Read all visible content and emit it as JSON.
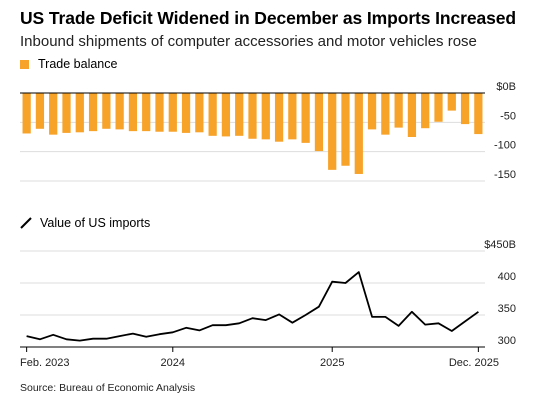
{
  "header": {
    "title": "US Trade Deficit Widened in December as Imports Increased",
    "subtitle": "Inbound shipments of computer accessories and motor vehicles rose"
  },
  "source": "Source: Bureau of Economic Analysis",
  "colors": {
    "bar": "#f7a229",
    "line": "#000000",
    "axis": "#000000",
    "grid": "#dddddd"
  },
  "chart_data": [
    {
      "type": "bar",
      "legend": "Trade balance",
      "series": [
        {
          "name": "Trade balance",
          "values": [
            -69,
            -61,
            -71,
            -68,
            -67,
            -65,
            -61,
            -62,
            -65,
            -65,
            -66,
            -66,
            -68,
            -67,
            -73,
            -74,
            -73,
            -78,
            -79,
            -83,
            -79,
            -85,
            -99,
            -131,
            -124,
            -138,
            -62,
            -71,
            -59,
            -75,
            -60,
            -49,
            -30,
            -53,
            -70
          ]
        }
      ],
      "yticks": [
        {
          "value": 0,
          "label": "$0B"
        },
        {
          "value": -50,
          "label": "-50"
        },
        {
          "value": -100,
          "label": "-100"
        },
        {
          "value": -150,
          "label": "-150"
        }
      ],
      "ylim": [
        -150,
        0
      ]
    },
    {
      "type": "line",
      "legend": "Value of US imports",
      "series": [
        {
          "name": "Value of US imports",
          "values": [
            317,
            312,
            319,
            312,
            310,
            313,
            313,
            317,
            321,
            316,
            320,
            323,
            330,
            326,
            334,
            334,
            337,
            345,
            342,
            351,
            338,
            350,
            363,
            402,
            400,
            417,
            347,
            347,
            333,
            355,
            335,
            337,
            325,
            340,
            355
          ]
        }
      ],
      "yticks": [
        {
          "value": 450,
          "label": "$450B"
        },
        {
          "value": 400,
          "label": "400"
        },
        {
          "value": 350,
          "label": "350"
        },
        {
          "value": 300,
          "label": "300"
        }
      ],
      "ylim": [
        300,
        450
      ]
    }
  ],
  "x_axis": {
    "count": 35,
    "labels": [
      {
        "index": 0,
        "label": "Feb. 2023"
      },
      {
        "index": 11,
        "label": "2024"
      },
      {
        "index": 23,
        "label": "2025"
      },
      {
        "index": 34,
        "label": "Dec. 2025"
      }
    ]
  }
}
